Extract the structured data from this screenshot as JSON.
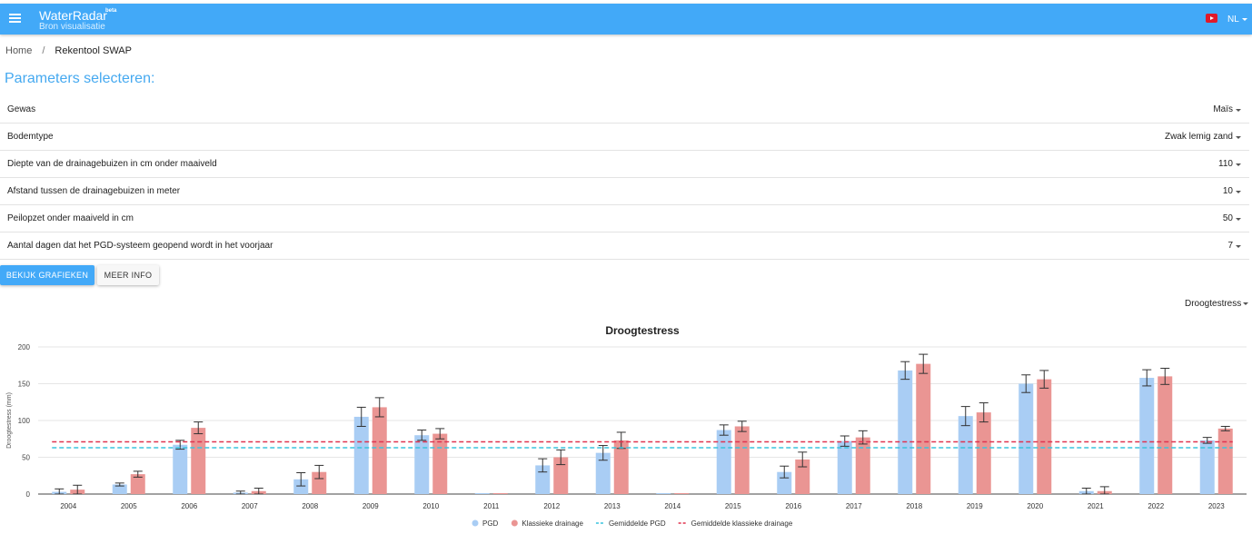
{
  "appbar": {
    "title": "WaterRadar",
    "beta": "beta",
    "subtitle": "Bron visualisatie",
    "language": "NL"
  },
  "breadcrumb": {
    "home": "Home",
    "separator": "/",
    "current": "Rekentool SWAP"
  },
  "section_title": "Parameters selecteren:",
  "parameters": [
    {
      "label": "Gewas",
      "value": "Maïs"
    },
    {
      "label": "Bodemtype",
      "value": "Zwak lemig zand"
    },
    {
      "label": "Diepte van de drainagebuizen in cm onder maaiveld",
      "value": "110"
    },
    {
      "label": "Afstand tussen de drainagebuizen in meter",
      "value": "10"
    },
    {
      "label": "Peilopzet onder maaiveld in cm",
      "value": "50"
    },
    {
      "label": "Aantal dagen dat het PGD-systeem geopend wordt in het voorjaar",
      "value": "7"
    }
  ],
  "buttons": {
    "primary": "BEKIJK GRAFIEKEN",
    "secondary": "MEER INFO"
  },
  "chart_selector": {
    "value": "Droogtestress"
  },
  "colors": {
    "accent": "#42a9f8",
    "pgd": "#a9cdf4",
    "klassiek": "#ea9593",
    "mean_pgd": "#39c4dd",
    "mean_klassiek": "#e0334f"
  },
  "chart_data": {
    "type": "bar",
    "title": "Droogtestress",
    "ylabel": "Droogtestress (mm)",
    "xlabel": "",
    "ylim": [
      0,
      200
    ],
    "yticks": [
      0,
      50,
      100,
      150,
      200
    ],
    "grid": true,
    "legend_position": "bottom",
    "categories": [
      "2004",
      "2005",
      "2006",
      "2007",
      "2008",
      "2009",
      "2010",
      "2011",
      "2012",
      "2013",
      "2014",
      "2015",
      "2016",
      "2017",
      "2018",
      "2019",
      "2020",
      "2021",
      "2022",
      "2023"
    ],
    "series": [
      {
        "name": "PGD",
        "values": [
          3,
          13,
          67,
          2,
          20,
          105,
          80,
          0,
          39,
          56,
          0,
          87,
          30,
          72,
          168,
          106,
          150,
          4,
          158,
          73
        ],
        "errors": [
          4,
          2,
          6,
          2,
          9,
          13,
          7,
          0,
          9,
          10,
          0,
          7,
          8,
          7,
          12,
          13,
          12,
          4,
          11,
          4
        ]
      },
      {
        "name": "Klassieke drainage",
        "values": [
          6,
          27,
          90,
          4,
          30,
          118,
          82,
          0,
          50,
          73,
          0,
          92,
          47,
          77,
          177,
          111,
          156,
          4,
          160,
          89
        ],
        "errors": [
          6,
          4,
          8,
          4,
          9,
          13,
          7,
          0,
          10,
          11,
          0,
          7,
          10,
          9,
          13,
          13,
          12,
          6,
          11,
          3
        ]
      }
    ],
    "reference_lines": [
      {
        "name": "Gemiddelde PGD",
        "value": 63
      },
      {
        "name": "Gemiddelde klassieke drainage",
        "value": 71
      }
    ]
  }
}
